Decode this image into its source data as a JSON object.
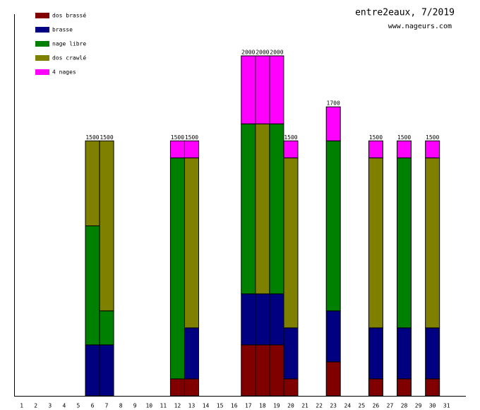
{
  "chart_data": {
    "type": "stacked-bar",
    "title": "entre2eaux, 7/2019",
    "subtitle": "www.nageurs.com",
    "categories": [
      "1",
      "2",
      "3",
      "4",
      "5",
      "6",
      "7",
      "8",
      "9",
      "10",
      "11",
      "12",
      "13",
      "14",
      "15",
      "16",
      "17",
      "18",
      "19",
      "20",
      "21",
      "22",
      "23",
      "24",
      "25",
      "26",
      "27",
      "28",
      "29",
      "30",
      "31"
    ],
    "series": [
      {
        "name": "dos brassé",
        "color": "#800000",
        "values": [
          0,
          0,
          0,
          0,
          0,
          0,
          0,
          0,
          0,
          0,
          0,
          100,
          100,
          0,
          0,
          0,
          300,
          300,
          300,
          100,
          0,
          0,
          200,
          0,
          0,
          100,
          0,
          100,
          0,
          100,
          0
        ]
      },
      {
        "name": "brasse",
        "color": "#000080",
        "values": [
          0,
          0,
          0,
          0,
          0,
          300,
          300,
          0,
          0,
          0,
          0,
          0,
          300,
          0,
          0,
          0,
          300,
          300,
          300,
          300,
          0,
          0,
          300,
          0,
          0,
          300,
          0,
          300,
          0,
          300,
          0
        ]
      },
      {
        "name": "nage libre",
        "color": "#008000",
        "values": [
          0,
          0,
          0,
          0,
          0,
          700,
          200,
          0,
          0,
          0,
          0,
          1300,
          0,
          0,
          0,
          0,
          1000,
          0,
          1000,
          0,
          0,
          0,
          1000,
          0,
          0,
          0,
          0,
          1000,
          0,
          0,
          0
        ]
      },
      {
        "name": "dos crawlé",
        "color": "#808000",
        "values": [
          0,
          0,
          0,
          0,
          0,
          500,
          1000,
          0,
          0,
          0,
          0,
          0,
          1000,
          0,
          0,
          0,
          0,
          1000,
          0,
          1000,
          0,
          0,
          0,
          0,
          0,
          1000,
          0,
          0,
          0,
          1000,
          0
        ]
      },
      {
        "name": "4 nages",
        "color": "#ff00ff",
        "values": [
          0,
          0,
          0,
          0,
          0,
          0,
          0,
          0,
          0,
          0,
          0,
          100,
          100,
          0,
          0,
          0,
          400,
          400,
          400,
          100,
          0,
          0,
          200,
          0,
          0,
          100,
          0,
          100,
          0,
          100,
          0
        ]
      }
    ],
    "totals": [
      null,
      null,
      null,
      null,
      null,
      1500,
      1500,
      null,
      null,
      null,
      null,
      1500,
      1500,
      null,
      null,
      null,
      2000,
      2000,
      2000,
      1500,
      null,
      null,
      1700,
      null,
      null,
      1500,
      null,
      1500,
      null,
      1500,
      null
    ]
  }
}
